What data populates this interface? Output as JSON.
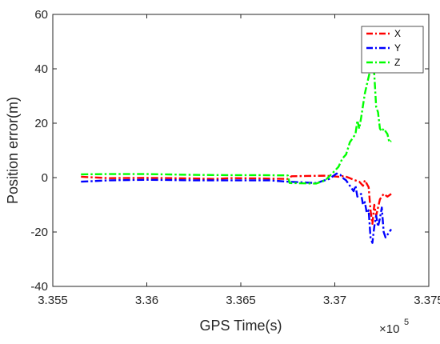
{
  "chart_data": {
    "type": "line",
    "xlabel": "GPS Time(s)",
    "ylabel": "Position error(m)",
    "x_exponent_label": "×10",
    "x_exponent_power": "5",
    "xlim": [
      3.355,
      3.375
    ],
    "ylim": [
      -40,
      60
    ],
    "x_ticks": [
      3.355,
      3.36,
      3.365,
      3.37,
      3.375
    ],
    "x_tick_labels": [
      "3.355",
      "3.36",
      "3.365",
      "3.37",
      "3.375"
    ],
    "y_ticks": [
      -40,
      -20,
      0,
      20,
      40,
      60
    ],
    "y_tick_labels": [
      "-40",
      "-20",
      "0",
      "20",
      "40",
      "60"
    ],
    "grid": false,
    "legend_position": "top-right",
    "series": [
      {
        "name": "X",
        "color": "#ff0000",
        "points": [
          [
            3.3565,
            0.3
          ],
          [
            3.358,
            -0.2
          ],
          [
            3.36,
            -0.1
          ],
          [
            3.3625,
            -0.3
          ],
          [
            3.3635,
            -0.5
          ],
          [
            3.3645,
            -0.2
          ],
          [
            3.366,
            -0.3
          ],
          [
            3.3675,
            -0.5
          ],
          [
            3.3677,
            0.5
          ],
          [
            3.3685,
            0.6
          ],
          [
            3.3695,
            0.7
          ],
          [
            3.3702,
            0.3
          ],
          [
            3.3705,
            0.6
          ],
          [
            3.3708,
            -0.2
          ],
          [
            3.371,
            -0.8
          ],
          [
            3.3713,
            -1.5
          ],
          [
            3.3715,
            -3.0
          ],
          [
            3.3716,
            -1.0
          ],
          [
            3.3718,
            -3.5
          ],
          [
            3.3719,
            -12.0
          ],
          [
            3.372,
            -17.0
          ],
          [
            3.3721,
            -10.0
          ],
          [
            3.3722,
            -14.0
          ],
          [
            3.3724,
            -8.0
          ],
          [
            3.3726,
            -6.0
          ],
          [
            3.3728,
            -7.0
          ],
          [
            3.373,
            -6.0
          ]
        ]
      },
      {
        "name": "Y",
        "color": "#0000ff",
        "points": [
          [
            3.3565,
            -1.5
          ],
          [
            3.358,
            -1.0
          ],
          [
            3.36,
            -0.8
          ],
          [
            3.3625,
            -1.0
          ],
          [
            3.3645,
            -1.0
          ],
          [
            3.3665,
            -1.0
          ],
          [
            3.3675,
            -1.5
          ],
          [
            3.369,
            -2.0
          ],
          [
            3.3697,
            -0.5
          ],
          [
            3.3701,
            1.5
          ],
          [
            3.3703,
            1.0
          ],
          [
            3.3704,
            0.0
          ],
          [
            3.3706,
            -1.0
          ],
          [
            3.3708,
            -3.0
          ],
          [
            3.371,
            -5.0
          ],
          [
            3.3711,
            -3.0
          ],
          [
            3.3712,
            -7.0
          ],
          [
            3.3714,
            -6.0
          ],
          [
            3.3715,
            -10.0
          ],
          [
            3.3716,
            -9.0
          ],
          [
            3.3717,
            -13.0
          ],
          [
            3.3718,
            -12.0
          ],
          [
            3.3719,
            -22.0
          ],
          [
            3.372,
            -24.0
          ],
          [
            3.3721,
            -18.0
          ],
          [
            3.3722,
            -14.0
          ],
          [
            3.3723,
            -18.0
          ],
          [
            3.3724,
            -15.0
          ],
          [
            3.3725,
            -11.0
          ],
          [
            3.3726,
            -20.0
          ],
          [
            3.3727,
            -22.0
          ],
          [
            3.3728,
            -21.0
          ],
          [
            3.373,
            -19.0
          ]
        ]
      },
      {
        "name": "Z",
        "color": "#00ff00",
        "points": [
          [
            3.3565,
            1.2
          ],
          [
            3.358,
            1.3
          ],
          [
            3.36,
            1.3
          ],
          [
            3.3625,
            1.0
          ],
          [
            3.3645,
            0.9
          ],
          [
            3.366,
            0.9
          ],
          [
            3.3675,
            0.8
          ],
          [
            3.3676,
            -2.0
          ],
          [
            3.369,
            -2.2
          ],
          [
            3.3695,
            -1.0
          ],
          [
            3.37,
            2.5
          ],
          [
            3.3702,
            4.0
          ],
          [
            3.3704,
            7.0
          ],
          [
            3.3706,
            8.5
          ],
          [
            3.3708,
            13.0
          ],
          [
            3.3709,
            14.0
          ],
          [
            3.3711,
            16.0
          ],
          [
            3.3712,
            21.0
          ],
          [
            3.3713,
            18.0
          ],
          [
            3.3714,
            22.0
          ],
          [
            3.3716,
            31.0
          ],
          [
            3.3717,
            34.0
          ],
          [
            3.3718,
            37.0
          ],
          [
            3.3719,
            40.0
          ],
          [
            3.372,
            43.0
          ],
          [
            3.3721,
            38.0
          ],
          [
            3.3722,
            26.0
          ],
          [
            3.3723,
            24.0
          ],
          [
            3.3724,
            18.0
          ],
          [
            3.3725,
            17.0
          ],
          [
            3.3726,
            18.0
          ],
          [
            3.3728,
            16.0
          ],
          [
            3.3729,
            13.0
          ],
          [
            3.373,
            13.5
          ]
        ]
      }
    ]
  }
}
